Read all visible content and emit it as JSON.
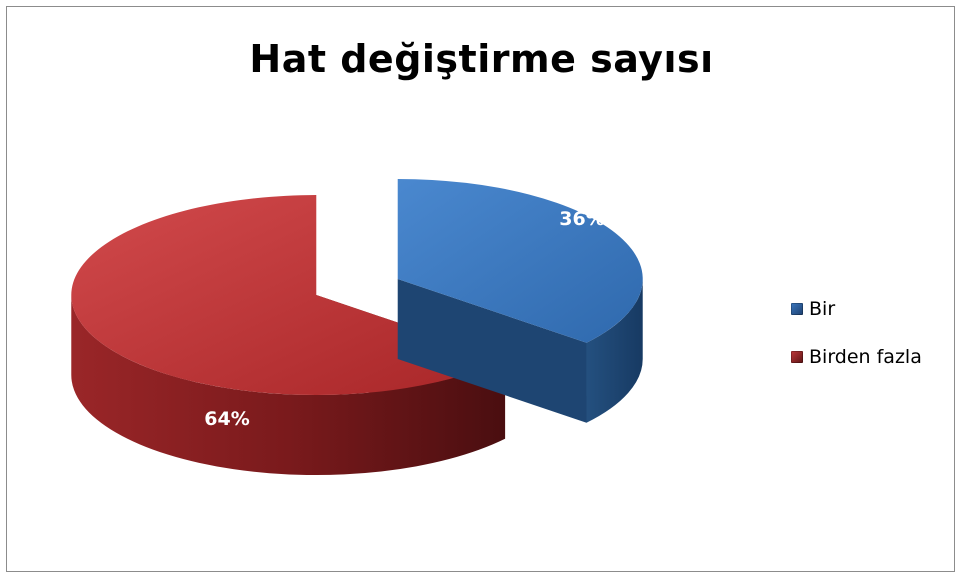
{
  "chart_data": {
    "type": "pie",
    "style": "3d-exploded",
    "title": "Hat değiştirme sayısı",
    "legend_position": "right",
    "slices": [
      {
        "label": "Bir",
        "value": 36,
        "data_label": "36%",
        "color": "#3b78c0",
        "color_dark": "#1d3f6e"
      },
      {
        "label": "Birden fazla",
        "value": 64,
        "data_label": "64%",
        "color": "#c0393b",
        "color_dark": "#5b1314"
      }
    ]
  }
}
